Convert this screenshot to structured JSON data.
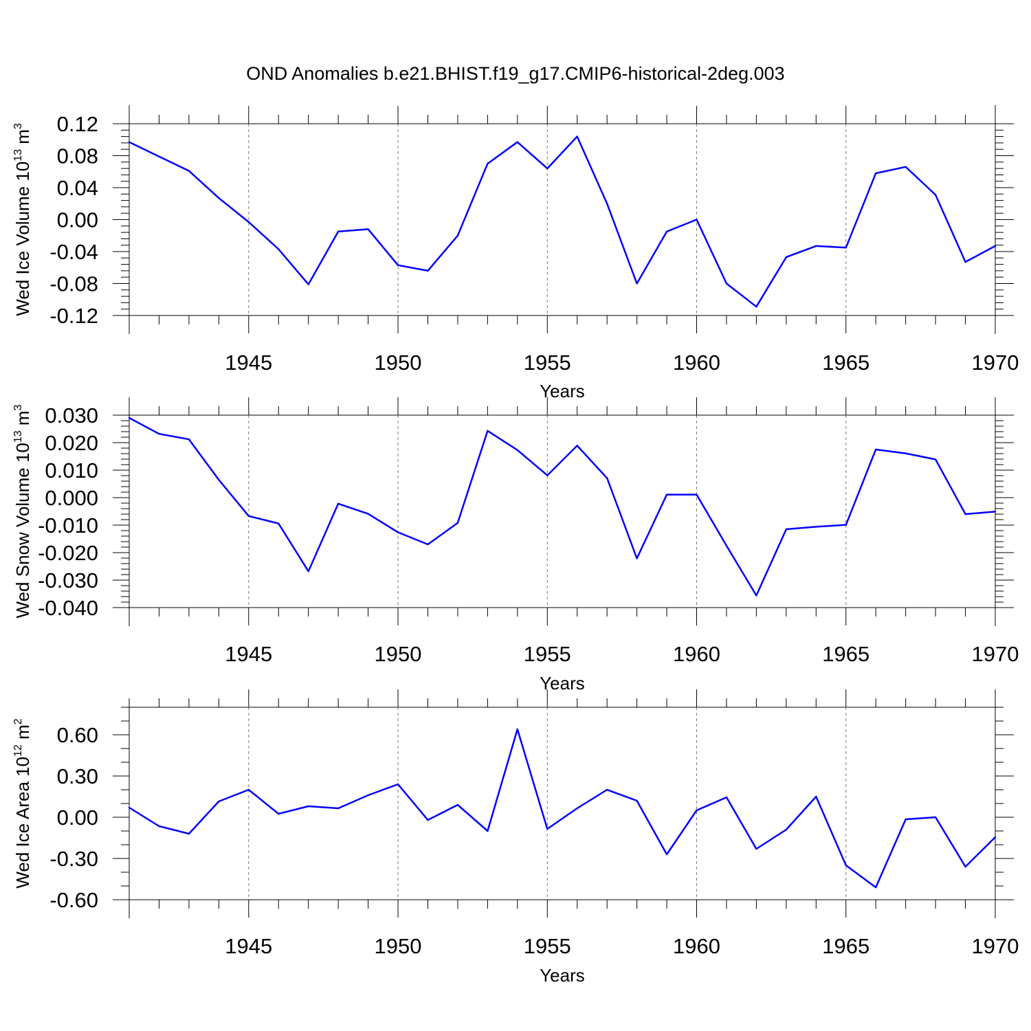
{
  "title": "OND Anomalies b.e21.BHIST.f19_g17.CMIP6-historical-2deg.003",
  "chart_data": [
    {
      "type": "line",
      "title": "OND Anomalies b.e21.BHIST.f19_g17.CMIP6-historical-2deg.003",
      "xlabel": "Years",
      "ylabel": {
        "base": "Wed Ice Volume 10",
        "exp": "13",
        "unit": " m",
        "unit_exp": "3"
      },
      "x": [
        1941,
        1942,
        1943,
        1944,
        1945,
        1946,
        1947,
        1948,
        1949,
        1950,
        1951,
        1952,
        1953,
        1954,
        1955,
        1956,
        1957,
        1958,
        1959,
        1960,
        1961,
        1962,
        1963,
        1964,
        1965,
        1966,
        1967,
        1968,
        1969,
        1970
      ],
      "values": [
        0.097,
        0.079,
        0.061,
        0.027,
        -0.003,
        -0.037,
        -0.081,
        -0.015,
        -0.012,
        -0.057,
        -0.064,
        -0.02,
        0.07,
        0.097,
        0.064,
        0.104,
        0.02,
        -0.08,
        -0.015,
        0.0,
        -0.08,
        -0.109,
        -0.047,
        -0.033,
        -0.035,
        0.058,
        0.066,
        0.031,
        -0.053,
        -0.033
      ],
      "series_color": "#0000ff",
      "xlim": [
        1941,
        1970
      ],
      "ylim": [
        -0.12,
        0.12
      ],
      "xticks": [
        1945,
        1950,
        1955,
        1960,
        1965,
        1970
      ],
      "xtick_labels": [
        "1945",
        "1950",
        "1955",
        "1960",
        "1965",
        "1970"
      ],
      "yticks": [
        -0.12,
        -0.08,
        -0.04,
        0.0,
        0.04,
        0.08,
        0.12
      ],
      "ytick_labels": [
        "-0.12",
        "-0.08",
        "-0.04",
        "0.00",
        "0.04",
        "0.08",
        "0.12"
      ],
      "yminor_step": 0.008,
      "grid": "vertical dashed at major x ticks"
    },
    {
      "type": "line",
      "xlabel": "Years",
      "ylabel": {
        "base": "Wed Snow Volume 10",
        "exp": "13",
        "unit": " m",
        "unit_exp": "3"
      },
      "x": [
        1941,
        1942,
        1943,
        1944,
        1945,
        1946,
        1947,
        1948,
        1949,
        1950,
        1951,
        1952,
        1953,
        1954,
        1955,
        1956,
        1957,
        1958,
        1959,
        1960,
        1961,
        1962,
        1963,
        1964,
        1965,
        1966,
        1967,
        1968,
        1969,
        1970
      ],
      "values": [
        0.029,
        0.0232,
        0.0212,
        0.0065,
        -0.0067,
        -0.0094,
        -0.0268,
        -0.0022,
        -0.0059,
        -0.0126,
        -0.017,
        -0.0092,
        0.0243,
        0.0173,
        0.0081,
        0.0189,
        0.0071,
        -0.0221,
        0.0011,
        0.0011,
        -0.0175,
        -0.0356,
        -0.0115,
        -0.0106,
        -0.0099,
        0.0175,
        0.0161,
        0.0139,
        -0.006,
        -0.0051
      ],
      "series_color": "#0000ff",
      "xlim": [
        1941,
        1970
      ],
      "ylim": [
        -0.04,
        0.03
      ],
      "xticks": [
        1945,
        1950,
        1955,
        1960,
        1965,
        1970
      ],
      "xtick_labels": [
        "1945",
        "1950",
        "1955",
        "1960",
        "1965",
        "1970"
      ],
      "yticks": [
        -0.04,
        -0.03,
        -0.02,
        -0.01,
        0.0,
        0.01,
        0.02,
        0.03
      ],
      "ytick_labels": [
        "-0.040",
        "-0.030",
        "-0.020",
        "-0.010",
        "0.000",
        "0.010",
        "0.020",
        "0.030"
      ],
      "yminor_step": 0.002,
      "grid": "vertical dashed at major x ticks"
    },
    {
      "type": "line",
      "xlabel": "Years",
      "ylabel": {
        "base": "Wed Ice Area 10",
        "exp": "12",
        "unit": " m",
        "unit_exp": "2"
      },
      "x": [
        1941,
        1942,
        1943,
        1944,
        1945,
        1946,
        1947,
        1948,
        1949,
        1950,
        1951,
        1952,
        1953,
        1954,
        1955,
        1956,
        1957,
        1958,
        1959,
        1960,
        1961,
        1962,
        1963,
        1964,
        1965,
        1966,
        1967,
        1968,
        1969,
        1970
      ],
      "values": [
        0.07,
        -0.065,
        -0.12,
        0.115,
        0.2,
        0.025,
        0.08,
        0.065,
        0.16,
        0.24,
        -0.02,
        0.09,
        -0.1,
        0.64,
        -0.085,
        0.065,
        0.2,
        0.12,
        -0.27,
        0.05,
        0.145,
        -0.23,
        -0.09,
        0.15,
        -0.35,
        -0.51,
        -0.015,
        0.0,
        -0.36,
        -0.145
      ],
      "series_color": "#0000ff",
      "xlim": [
        1941,
        1970
      ],
      "ylim": [
        -0.6,
        0.8
      ],
      "xticks": [
        1945,
        1950,
        1955,
        1960,
        1965,
        1970
      ],
      "xtick_labels": [
        "1945",
        "1950",
        "1955",
        "1960",
        "1965",
        "1970"
      ],
      "yticks": [
        -0.6,
        -0.3,
        0.0,
        0.3,
        0.6
      ],
      "ytick_labels": [
        "-0.60",
        "-0.30",
        "0.00",
        "0.30",
        "0.60"
      ],
      "yminor_step": 0.1,
      "grid": "vertical dashed at major x ticks"
    }
  ]
}
